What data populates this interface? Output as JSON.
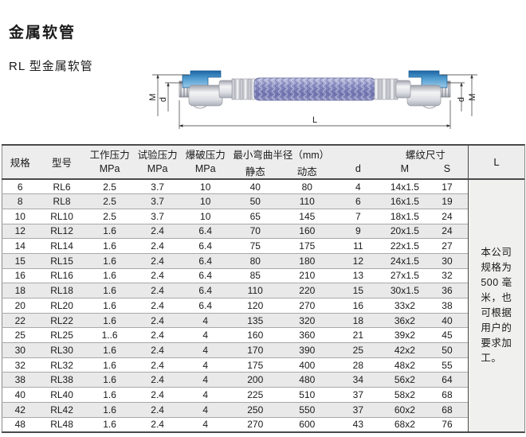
{
  "page": {
    "title": "金属软管",
    "subtitle": "RL 型金属软管"
  },
  "diagram": {
    "name": "RL型金属软管结构图",
    "labels": {
      "left_outer": "M",
      "left_inner": "d",
      "right_inner": "d",
      "right_outer": "M",
      "length": "L"
    },
    "colors": {
      "fitting_blue": "#2878b8",
      "braid_purple": "#8e92c4",
      "metal_silver": "#d6d6dc"
    }
  },
  "table": {
    "header": {
      "spec": "规格",
      "model": "型号",
      "working_pressure": "工作压力",
      "test_pressure": "试验压力",
      "burst_pressure": "爆破压力",
      "mpa": "MPa",
      "min_bend_radius": "最小弯曲半径（mm）",
      "static": "静态",
      "dynamic": "动态",
      "d": "d",
      "thread_size": "螺纹尺寸",
      "m": "M",
      "s": "S",
      "l": "L"
    },
    "rows": [
      [
        "6",
        "RL6",
        "2.5",
        "3.7",
        "10",
        "40",
        "80",
        "4",
        "14x1.5",
        "17"
      ],
      [
        "8",
        "RL8",
        "2.5",
        "3.7",
        "10",
        "50",
        "110",
        "6",
        "16x1.5",
        "19"
      ],
      [
        "10",
        "RL10",
        "2.5",
        "3.7",
        "10",
        "65",
        "145",
        "7",
        "18x1.5",
        "24"
      ],
      [
        "12",
        "RL12",
        "1.6",
        "2.4",
        "6.4",
        "70",
        "160",
        "9",
        "20x1.5",
        "24"
      ],
      [
        "14",
        "RL14",
        "1.6",
        "2.4",
        "6.4",
        "75",
        "175",
        "11",
        "22x1.5",
        "27"
      ],
      [
        "15",
        "RL15",
        "1.6",
        "2.4",
        "6.4",
        "80",
        "180",
        "12",
        "24x1.5",
        "30"
      ],
      [
        "16",
        "RL16",
        "1.6",
        "2.4",
        "6.4",
        "85",
        "210",
        "13",
        "27x1.5",
        "32"
      ],
      [
        "18",
        "RL18",
        "1.6",
        "2.4",
        "6.4",
        "110",
        "220",
        "15",
        "30x1.5",
        "36"
      ],
      [
        "20",
        "RL20",
        "1.6",
        "2.4",
        "6.4",
        "120",
        "270",
        "16",
        "33x2",
        "38"
      ],
      [
        "22",
        "RL22",
        "1.6",
        "2.4",
        "4",
        "135",
        "320",
        "18",
        "36x2",
        "40"
      ],
      [
        "25",
        "RL25",
        "1..6",
        "2.4",
        "4",
        "160",
        "360",
        "21",
        "39x2",
        "45"
      ],
      [
        "30",
        "RL30",
        "1.6",
        "2.4",
        "4",
        "170",
        "390",
        "25",
        "42x2",
        "50"
      ],
      [
        "32",
        "RL32",
        "1.6",
        "2.4",
        "4",
        "175",
        "400",
        "28",
        "48x2",
        "55"
      ],
      [
        "38",
        "RL38",
        "1.6",
        "2.4",
        "4",
        "200",
        "480",
        "34",
        "56x2",
        "64"
      ],
      [
        "40",
        "RL40",
        "1.6",
        "2.4",
        "4",
        "225",
        "510",
        "37",
        "58x2",
        "68"
      ],
      [
        "42",
        "RL42",
        "1.6",
        "2.4",
        "4",
        "250",
        "550",
        "37",
        "60x2",
        "68"
      ],
      [
        "48",
        "RL48",
        "1.6",
        "2.4",
        "4",
        "270",
        "600",
        "43",
        "68x2",
        "76"
      ]
    ],
    "note": "本公司\n规格为\n500 毫\n米，也\n可根据\n用户的\n要求加\n工。"
  }
}
